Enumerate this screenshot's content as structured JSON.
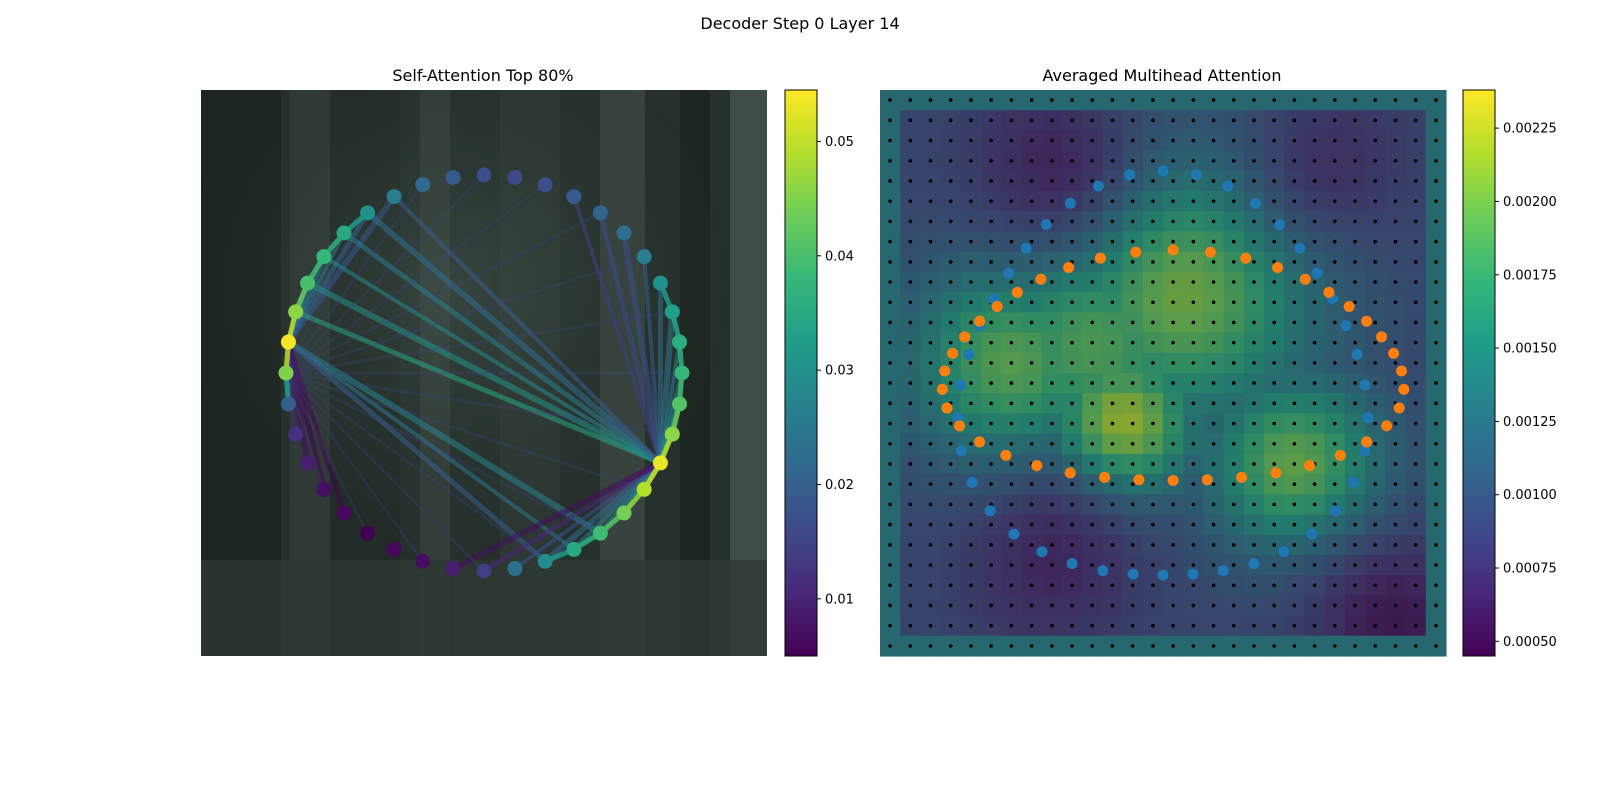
{
  "figure": {
    "title": "Decoder Step 0 Layer 14"
  },
  "chart_data": [
    {
      "type": "network",
      "title": "Self-Attention Top 80%",
      "node_count": 40,
      "node_values": [
        0.045,
        0.054,
        0.046,
        0.04,
        0.038,
        0.035,
        0.03,
        0.026,
        0.022,
        0.019,
        0.017,
        0.016,
        0.017,
        0.019,
        0.021,
        0.023,
        0.026,
        0.03,
        0.033,
        0.036,
        0.038,
        0.041,
        0.046,
        0.053,
        0.049,
        0.044,
        0.039,
        0.035,
        0.029,
        0.023,
        0.014,
        0.009,
        0.007,
        0.006,
        0.005,
        0.006,
        0.007,
        0.009,
        0.012,
        0.02
      ],
      "edges": {
        "hub_a": 1,
        "hub_b": 23,
        "strong_targets_a": [
          2,
          3,
          4,
          5,
          6,
          7,
          35,
          36,
          37,
          38,
          39,
          26,
          27,
          28
        ],
        "strong_targets_b": [
          13,
          14,
          15,
          16,
          17,
          18,
          19,
          20,
          21,
          22,
          24,
          25,
          26,
          27,
          28,
          29,
          2,
          3,
          4,
          5,
          6,
          7,
          30,
          31
        ],
        "coverage": "top 80%"
      },
      "colorbar": {
        "colormap": "viridis",
        "range": [
          0.005,
          0.0545
        ],
        "ticks": [
          "0.01",
          "0.02",
          "0.03",
          "0.04",
          "0.05"
        ],
        "tick_values": [
          0.01,
          0.02,
          0.03,
          0.04,
          0.05
        ]
      },
      "background": "blurred dark photo"
    },
    {
      "type": "heatmap",
      "title": "Averaged Multihead Attention",
      "grid": {
        "rows": 28,
        "cols": 28
      },
      "colorbar": {
        "colormap": "viridis",
        "range": [
          0.00045,
          0.00238
        ],
        "ticks": [
          "0.00050",
          "0.00075",
          "0.00100",
          "0.00125",
          "0.00150",
          "0.00175",
          "0.00200",
          "0.00225"
        ],
        "tick_values": [
          0.0005,
          0.00075,
          0.001,
          0.00125,
          0.0015,
          0.00175,
          0.002,
          0.00225
        ]
      },
      "hotspots": [
        {
          "row": 9.5,
          "col": 14.5,
          "value": 0.00205,
          "spread": 4.5
        },
        {
          "row": 16,
          "col": 11.5,
          "value": 0.00225,
          "spread": 2.5
        },
        {
          "row": 13,
          "col": 6,
          "value": 0.00195,
          "spread": 3.5
        },
        {
          "row": 18,
          "col": 20,
          "value": 0.002,
          "spread": 3.0
        },
        {
          "row": 12,
          "col": 10,
          "value": 0.0019,
          "spread": 4.0
        }
      ],
      "base_value": 0.0009,
      "low_regions": [
        {
          "row": 3,
          "col": 8,
          "value": 0.0006
        },
        {
          "row": 23,
          "col": 8,
          "value": 0.0006
        },
        {
          "row": 26,
          "col": 25,
          "value": 0.0005
        },
        {
          "row": 3,
          "col": 22,
          "value": 0.0007
        }
      ],
      "series": [
        {
          "color": "#1f77b4",
          "shape": "outer ring",
          "point_count": 40
        },
        {
          "color": "#ff7f0e",
          "shape": "inner ring",
          "point_count": 40
        }
      ]
    }
  ]
}
